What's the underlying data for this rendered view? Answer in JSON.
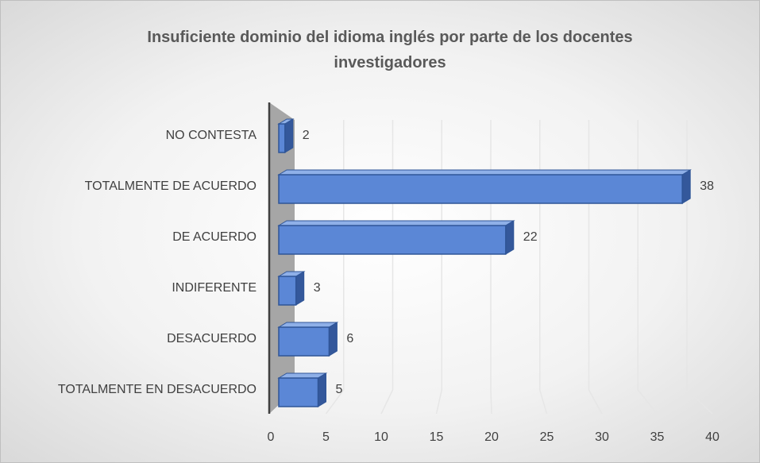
{
  "chart_data": {
    "type": "bar3d",
    "title": "Insuficiente dominio del idioma inglés por parte de los docentes investigadores",
    "categories": [
      "NO CONTESTA",
      "TOTALMENTE DE ACUERDO",
      "DE ACUERDO",
      "INDIFERENTE",
      "DESACUERDO",
      "TOTALMENTE EN DESACUERDO"
    ],
    "values": [
      2,
      38,
      22,
      3,
      6,
      5
    ],
    "color": "#5b87d6",
    "xlim": [
      0,
      40
    ],
    "xticks": [
      0,
      5,
      10,
      15,
      20,
      25,
      30,
      35,
      40
    ],
    "grid": true
  }
}
